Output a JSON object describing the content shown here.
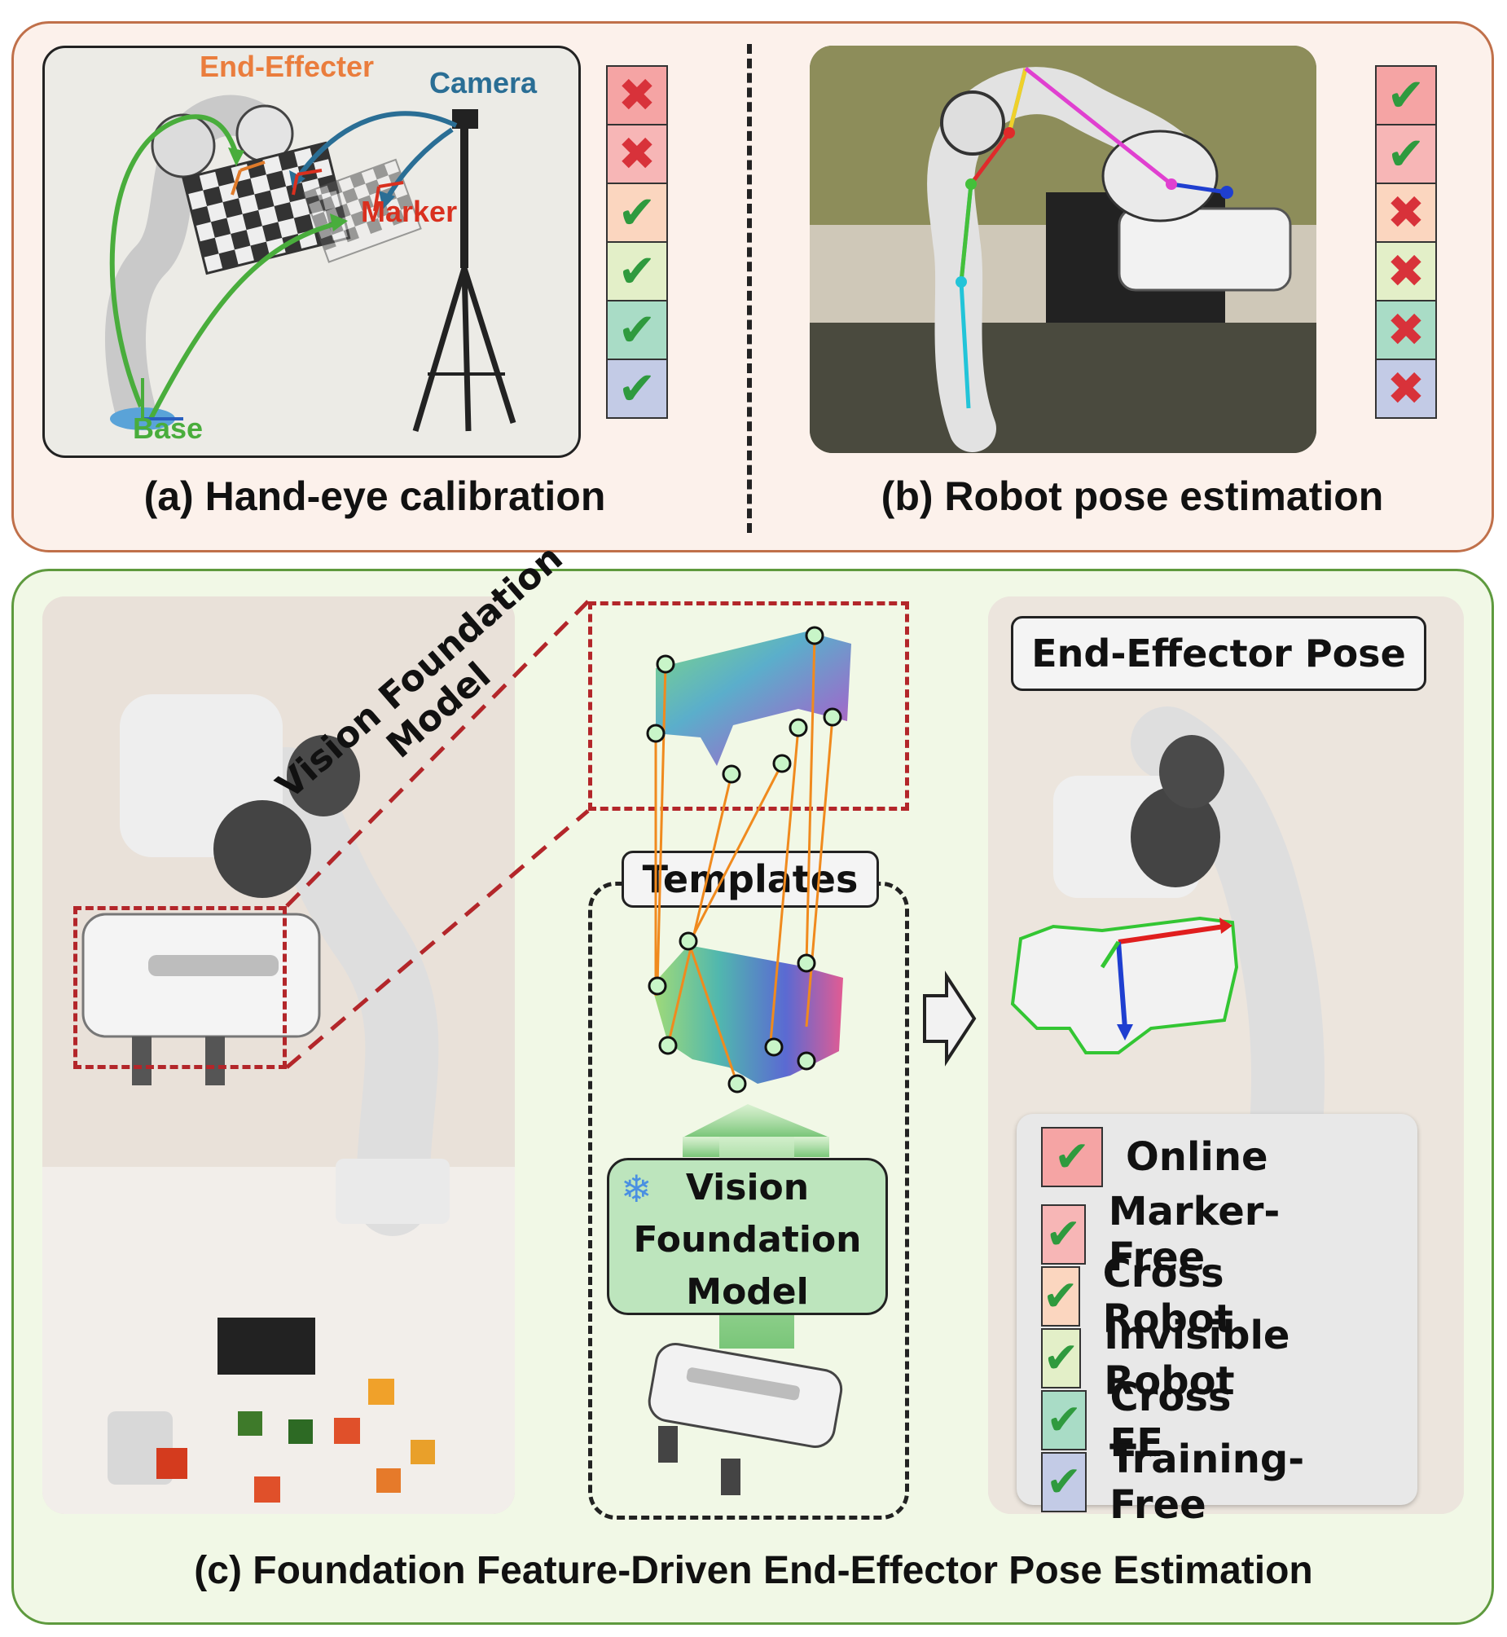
{
  "panels": {
    "a": {
      "caption": "(a) Hand-eye calibration",
      "labels": {
        "end_effector": "End-Effecter",
        "camera": "Camera",
        "marker": "Marker",
        "base": "Base"
      },
      "checks": [
        "no",
        "no",
        "ok",
        "ok",
        "ok",
        "ok"
      ]
    },
    "b": {
      "caption": "(b) Robot pose estimation",
      "checks": [
        "ok",
        "ok",
        "no",
        "no",
        "no",
        "no"
      ]
    },
    "c": {
      "caption": "(c) Foundation Feature-Driven End-Effector Pose Estimation",
      "vfm_slanted_line1": "Vision Foundation",
      "vfm_slanted_line2": "Model",
      "templates_label": "Templates",
      "vfm_box": {
        "line1": "Vision",
        "line2": "Foundation",
        "line3": "Model"
      },
      "pose_label": "End-Effector Pose",
      "features": [
        "Online",
        "Marker-Free",
        "Cross Robot",
        "Invisible Robot",
        "Cross EE",
        "Training-Free"
      ]
    }
  },
  "row_colors": [
    "#f5a4a4",
    "#f7b6b6",
    "#fbd6bf",
    "#e3efc8",
    "#a9dcc6",
    "#c3cbe6"
  ],
  "symbols": {
    "ok": "✔",
    "no": "✖",
    "snowflake": "❄",
    "arrow": "⇨"
  }
}
